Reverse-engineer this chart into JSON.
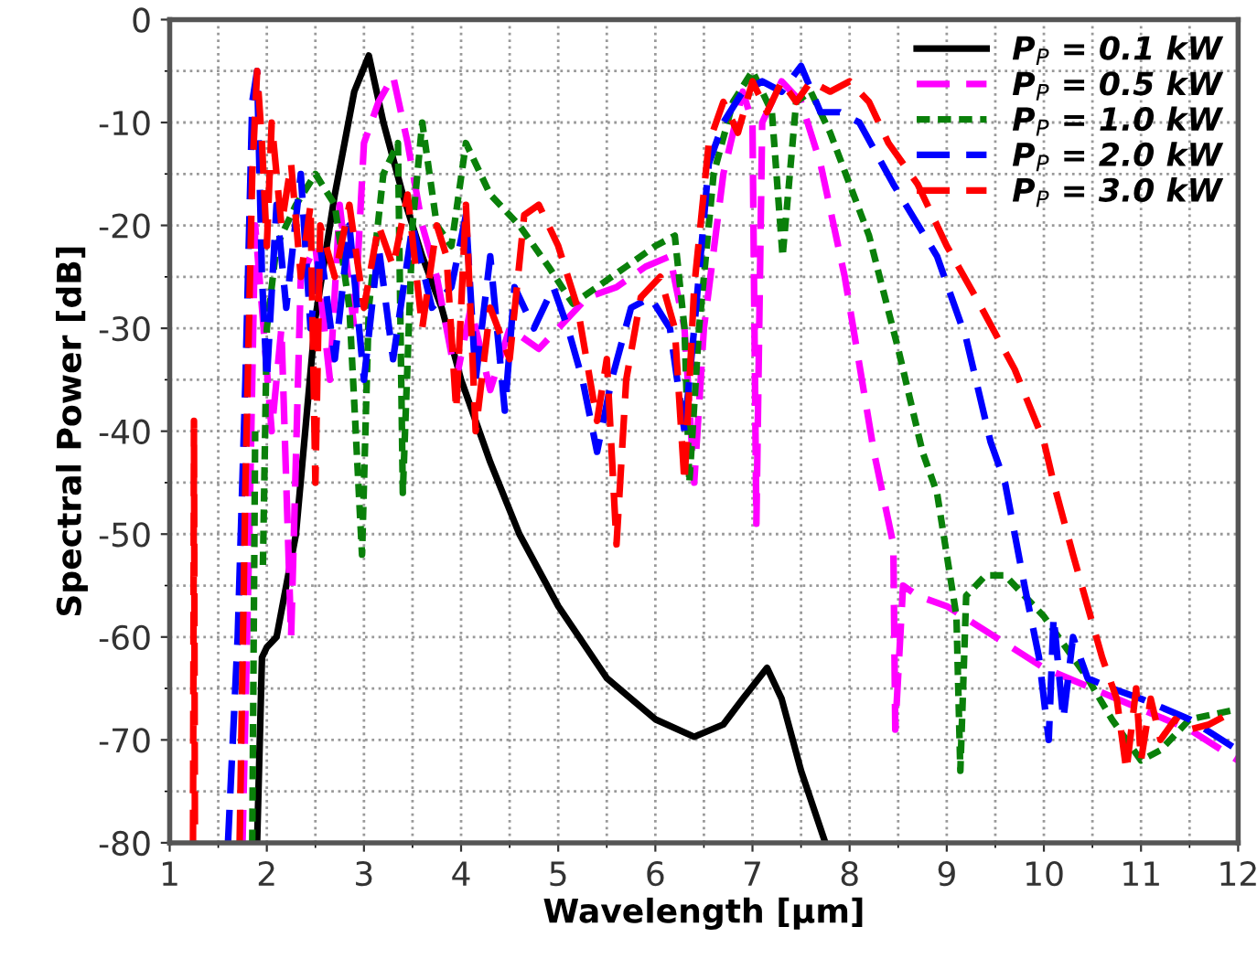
{
  "chart_data": {
    "type": "line",
    "xlabel": "Wavelength [µm]",
    "ylabel": "Spectral Power [dB]",
    "xlim": [
      1,
      12
    ],
    "xticks": [
      1,
      2,
      3,
      4,
      5,
      6,
      7,
      8,
      9,
      10,
      11,
      12
    ],
    "ylim": [
      -80,
      0
    ],
    "yticks": [
      -80,
      -70,
      -60,
      -50,
      -40,
      -30,
      -20,
      -10,
      0
    ],
    "grid": true,
    "legend": "top right",
    "series": [
      {
        "name": "P$_{P}$ = 0.1 kW",
        "color": "#000000",
        "line_style": "solid",
        "x": [
          1.9,
          1.95,
          2.0,
          2.1,
          2.3,
          2.5,
          2.7,
          2.9,
          3.05,
          3.2,
          3.4,
          3.6,
          3.8,
          4.0,
          4.3,
          4.6,
          5.0,
          5.5,
          6.0,
          6.4,
          6.7,
          6.9,
          7.15,
          7.3,
          7.5,
          7.75
        ],
        "values": [
          -80,
          -62,
          -61,
          -60,
          -50,
          -29,
          -17,
          -7,
          -3.5,
          -10,
          -17,
          -23,
          -28,
          -35,
          -43,
          -50,
          -57,
          -64,
          -68,
          -69.7,
          -68.5,
          -66,
          -63,
          -66,
          -73,
          -80
        ]
      },
      {
        "name": "P$_{P}$ = 0.5 kW",
        "color": "#ff00ff",
        "line_style": "dashed",
        "x": [
          1.75,
          1.82,
          1.88,
          1.95,
          2.05,
          2.15,
          2.25,
          2.35,
          2.5,
          2.65,
          2.75,
          2.9,
          3.0,
          3.15,
          3.3,
          3.45,
          3.6,
          3.75,
          3.95,
          4.1,
          4.3,
          4.5,
          4.8,
          5.0,
          5.3,
          5.6,
          5.9,
          6.15,
          6.3,
          6.4,
          6.5,
          6.7,
          6.9,
          7.0,
          7.04,
          7.1,
          7.3,
          7.5,
          7.7,
          7.95,
          8.25,
          8.45,
          8.47,
          8.55,
          8.7,
          9.0,
          9.5,
          10.0,
          10.5,
          11.0,
          11.5,
          12.0
        ],
        "values": [
          -80,
          -50,
          -20,
          -28,
          -40,
          -30,
          -60,
          -25,
          -22,
          -35,
          -18,
          -30,
          -12,
          -8,
          -5.5,
          -12,
          -20,
          -25,
          -35,
          -28,
          -36,
          -30,
          -32,
          -30,
          -27,
          -26,
          -24,
          -23,
          -30,
          -45,
          -30,
          -15,
          -7,
          -10,
          -49,
          -10,
          -6,
          -8,
          -14,
          -25,
          -42,
          -51,
          -69,
          -55,
          -56,
          -57,
          -60,
          -63,
          -65,
          -67,
          -69,
          -72
        ]
      },
      {
        "name": "P$_{P}$ = 1.0 kW",
        "color": "#0a800a",
        "line_style": "dotted",
        "x": [
          1.85,
          1.88,
          1.92,
          1.96,
          2.0,
          2.1,
          2.3,
          2.5,
          2.7,
          2.85,
          2.98,
          3.05,
          3.2,
          3.35,
          3.4,
          3.5,
          3.6,
          3.75,
          3.9,
          4.05,
          4.3,
          4.6,
          4.9,
          5.15,
          5.4,
          5.7,
          6.0,
          6.2,
          6.3,
          6.35,
          6.45,
          6.6,
          6.8,
          7.0,
          7.2,
          7.31,
          7.45,
          7.6,
          7.8,
          8.2,
          8.5,
          8.75,
          8.9,
          9.0,
          9.1,
          9.14,
          9.2,
          9.4,
          9.6,
          10.0,
          10.45,
          10.7,
          11.0,
          11.2,
          11.5,
          12.0
        ],
        "values": [
          -80,
          -40,
          null,
          -53,
          -30,
          -22,
          -18,
          -15,
          -18,
          -28,
          -52,
          -28,
          -15,
          -12,
          -46,
          -20,
          -10,
          -20,
          -22,
          -12,
          -17,
          -20,
          -24,
          -27.6,
          -26,
          -24,
          -22,
          -21,
          -30,
          -45,
          -30,
          -15,
          -8,
          -5,
          -9,
          -23,
          -8,
          -7,
          -11,
          -21,
          -32,
          -42,
          -46,
          -52,
          -58,
          -73,
          -56,
          -54,
          -54,
          -58,
          -64,
          -68,
          -72,
          -71,
          -68,
          -67
        ]
      },
      {
        "name": "P$_{P}$ = 2.0 kW",
        "color": "#0000ff",
        "line_style": "dashed",
        "x": [
          1.6,
          1.7,
          1.78,
          1.85,
          1.9,
          1.95,
          2.0,
          2.1,
          2.2,
          2.35,
          2.45,
          2.55,
          2.7,
          2.85,
          3.0,
          3.15,
          3.3,
          3.5,
          3.7,
          3.9,
          4.05,
          4.15,
          4.3,
          4.45,
          4.55,
          4.75,
          4.95,
          5.1,
          5.25,
          5.4,
          5.55,
          5.75,
          5.95,
          6.15,
          6.3,
          6.4,
          6.55,
          6.7,
          6.9,
          7.1,
          7.3,
          7.5,
          7.7,
          7.9,
          8.1,
          8.45,
          8.9,
          9.2,
          9.45,
          9.6,
          9.8,
          9.95,
          10.05,
          10.1,
          10.2,
          10.3,
          10.45,
          10.7,
          11.0,
          11.5,
          12.0
        ],
        "values": [
          -80,
          -60,
          -35,
          -8,
          -5,
          -25,
          -35,
          -18,
          -28,
          -15,
          -30,
          -22,
          -33,
          -20,
          -35,
          -22,
          -33,
          -20,
          -28,
          -26,
          -19,
          -35,
          -23,
          -38,
          -26,
          -30,
          -26,
          -30,
          -35,
          -42,
          -35,
          -28,
          -27,
          -30,
          -40,
          -30,
          -14,
          -10,
          -7,
          -6,
          -7,
          -4.5,
          -9,
          -9,
          -10,
          -16,
          -23,
          -31,
          -41,
          -45,
          -55,
          -62,
          -70,
          -58,
          -68,
          -60,
          -64,
          -65,
          -66,
          -68,
          -71
        ]
      },
      {
        "name": "P$_{P}$ = 3.0 kW",
        "color": "#ff0000",
        "line_style": "dashed",
        "x": [
          1.24,
          1.25,
          1.26,
          1.5,
          1.72,
          1.78,
          1.85,
          1.9,
          1.95,
          2.0,
          2.05,
          2.15,
          2.25,
          2.35,
          2.45,
          2.5,
          2.55,
          2.7,
          2.85,
          3.0,
          3.15,
          3.3,
          3.45,
          3.6,
          3.75,
          3.85,
          3.95,
          4.05,
          4.15,
          4.3,
          4.5,
          4.65,
          4.8,
          5.0,
          5.2,
          5.4,
          5.5,
          5.6,
          5.7,
          5.85,
          6.05,
          6.2,
          6.3,
          6.4,
          6.55,
          6.7,
          6.85,
          7.0,
          7.15,
          7.3,
          7.45,
          7.6,
          7.8,
          8.0,
          8.2,
          8.4,
          8.7,
          9.0,
          9.3,
          9.7,
          10.0,
          10.1,
          10.3,
          10.45,
          10.6,
          10.75,
          10.85,
          10.95,
          11.0,
          11.1,
          11.2,
          11.35,
          11.5,
          11.7,
          12.0
        ],
        "values": [
          -80,
          -39,
          -80,
          null,
          -80,
          -45,
          -15,
          -5,
          -12,
          -22,
          -10,
          -20,
          -14,
          -25,
          -18,
          -45,
          -20,
          -25,
          -18,
          -28,
          -20,
          -24,
          -17,
          -30,
          -20,
          -23,
          -38,
          -18,
          -40,
          -28,
          -33,
          -19,
          -18,
          -22,
          -28,
          -39,
          -33,
          -51,
          -35,
          -27,
          -25,
          -30,
          -45,
          -26,
          -12,
          -8,
          -11,
          -6,
          -9,
          -6,
          -8,
          -6,
          -7,
          -6,
          -8,
          -12,
          -16,
          -22,
          -27,
          -34,
          -41,
          -45,
          -52,
          -57,
          -62,
          -66,
          -73,
          -65,
          -72,
          -66,
          -70,
          -68,
          -69,
          -68.5,
          -67
        ]
      }
    ]
  }
}
